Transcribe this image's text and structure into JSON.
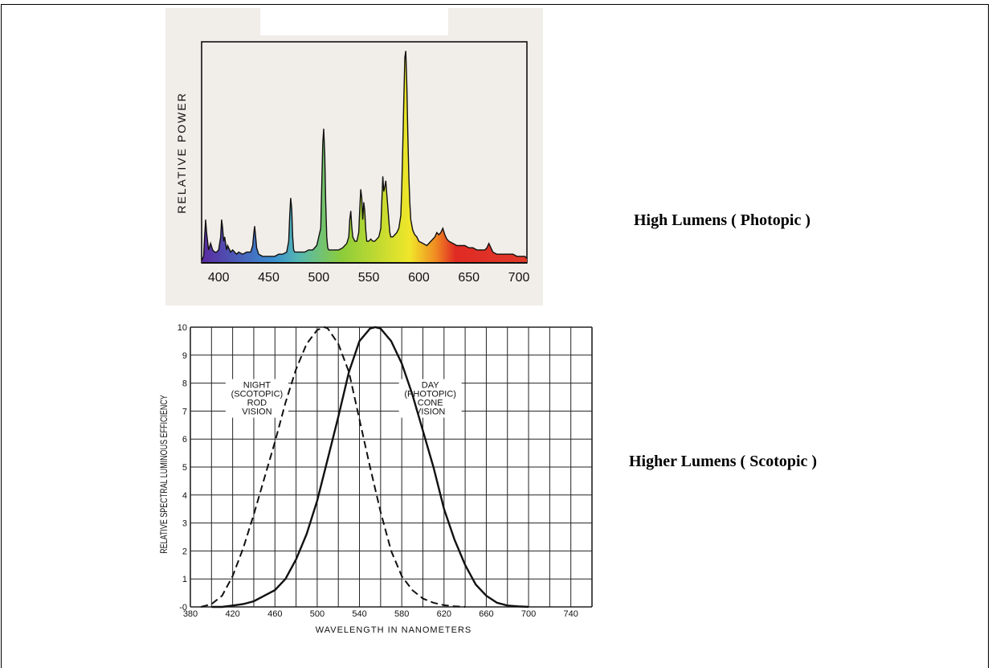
{
  "captions": {
    "photopic": "High Lumens ( Photopic )",
    "scotopic": "Higher Lumens ( Scotopic )"
  },
  "chart_data": [
    {
      "type": "area",
      "ylabel": "RELATIVE POWER",
      "x_ticks": [
        400,
        450,
        500,
        550,
        600,
        650,
        700
      ],
      "xlim": [
        383,
        708
      ],
      "ylim": [
        0,
        1
      ],
      "colors": {
        "violet": "#5b2aa0",
        "blue": "#3a8fd0",
        "cyan": "#55b8b0",
        "green": "#8ccc3a",
        "yellow": "#f0e62a",
        "orange": "#f08a22",
        "red": "#e02a24",
        "line": "#111111"
      },
      "series": [
        {
          "x": [
            383,
            385,
            386,
            387,
            388,
            390,
            392,
            394,
            396,
            398,
            400,
            402,
            403,
            404,
            405,
            406,
            407,
            408,
            409,
            410,
            412,
            414,
            416,
            418,
            420,
            424,
            428,
            432,
            434,
            435,
            436,
            437,
            438,
            440,
            444,
            448,
            452,
            456,
            460,
            464,
            468,
            470,
            471,
            472,
            473,
            474,
            475,
            476,
            478,
            482,
            486,
            490,
            494,
            498,
            502,
            503,
            504,
            505,
            506,
            507,
            508,
            509,
            510,
            512,
            516,
            520,
            524,
            528,
            530,
            531,
            532,
            533,
            534,
            536,
            538,
            540,
            541,
            542,
            543,
            544,
            545,
            546,
            547,
            548,
            550,
            552,
            554,
            556,
            560,
            562,
            563,
            564,
            565,
            566,
            567,
            568,
            569,
            570,
            571,
            572,
            574,
            576,
            578,
            580,
            582,
            583,
            584,
            585,
            586,
            587,
            588,
            589,
            590,
            591,
            592,
            594,
            596,
            598,
            600,
            604,
            608,
            612,
            616,
            618,
            620,
            622,
            624,
            626,
            628,
            630,
            634,
            638,
            642,
            646,
            650,
            654,
            658,
            662,
            666,
            668,
            670,
            672,
            674,
            678,
            682,
            686,
            690,
            694,
            698,
            702,
            706,
            708
          ],
          "y": [
            0.01,
            0.03,
            0.12,
            0.2,
            0.14,
            0.06,
            0.09,
            0.06,
            0.05,
            0.05,
            0.06,
            0.12,
            0.2,
            0.16,
            0.1,
            0.12,
            0.09,
            0.06,
            0.08,
            0.07,
            0.05,
            0.06,
            0.05,
            0.04,
            0.05,
            0.04,
            0.05,
            0.05,
            0.08,
            0.13,
            0.17,
            0.12,
            0.07,
            0.04,
            0.03,
            0.03,
            0.03,
            0.03,
            0.04,
            0.04,
            0.05,
            0.1,
            0.22,
            0.3,
            0.25,
            0.12,
            0.06,
            0.05,
            0.05,
            0.05,
            0.05,
            0.06,
            0.06,
            0.08,
            0.16,
            0.35,
            0.55,
            0.62,
            0.5,
            0.28,
            0.12,
            0.07,
            0.06,
            0.06,
            0.06,
            0.06,
            0.07,
            0.09,
            0.12,
            0.2,
            0.24,
            0.17,
            0.12,
            0.1,
            0.1,
            0.14,
            0.25,
            0.34,
            0.3,
            0.2,
            0.28,
            0.24,
            0.15,
            0.1,
            0.1,
            0.11,
            0.1,
            0.1,
            0.12,
            0.16,
            0.28,
            0.4,
            0.33,
            0.35,
            0.38,
            0.32,
            0.26,
            0.2,
            0.14,
            0.12,
            0.12,
            0.13,
            0.14,
            0.16,
            0.22,
            0.35,
            0.55,
            0.75,
            0.95,
            0.98,
            0.82,
            0.6,
            0.4,
            0.28,
            0.2,
            0.15,
            0.13,
            0.12,
            0.1,
            0.09,
            0.08,
            0.1,
            0.12,
            0.14,
            0.13,
            0.14,
            0.16,
            0.13,
            0.11,
            0.1,
            0.09,
            0.08,
            0.08,
            0.08,
            0.07,
            0.07,
            0.06,
            0.06,
            0.06,
            0.07,
            0.09,
            0.07,
            0.05,
            0.04,
            0.04,
            0.04,
            0.04,
            0.04,
            0.03,
            0.03,
            0.03,
            0.02
          ]
        }
      ]
    },
    {
      "type": "line",
      "xlabel": "WAVELENGTH IN NANOMETERS",
      "ylabel": "RELATIVE SPECTRAL LUMINOUS EFFICIENCY",
      "xlim": [
        380,
        760
      ],
      "ylim": [
        0,
        10
      ],
      "x_ticks": [
        380,
        420,
        460,
        500,
        540,
        580,
        620,
        660,
        700,
        740
      ],
      "y_ticks": [
        0,
        1,
        2,
        3,
        4,
        5,
        6,
        7,
        8,
        9,
        10
      ],
      "y_tick_labels": [
        "-0",
        "1",
        "2",
        "3",
        "4",
        "5",
        "6",
        "7",
        "8",
        "9",
        "10"
      ],
      "grid": true,
      "annotations": [
        {
          "lines": [
            "NIGHT",
            "(SCOTOPIC)",
            "ROD",
            "VISION"
          ],
          "x": 443,
          "y": 8.0
        },
        {
          "lines": [
            "DAY",
            "(PHOTOPIC)",
            "CONE",
            "VISION"
          ],
          "x": 607,
          "y": 8.0
        }
      ],
      "series": [
        {
          "style": "dashed",
          "x": [
            390,
            400,
            410,
            420,
            430,
            440,
            450,
            460,
            470,
            480,
            490,
            500,
            507,
            510,
            520,
            530,
            540,
            550,
            560,
            570,
            580,
            590,
            600,
            610,
            620,
            630,
            640
          ],
          "y": [
            0.0,
            0.1,
            0.4,
            1.1,
            2.1,
            3.3,
            4.6,
            5.9,
            7.3,
            8.5,
            9.4,
            9.9,
            10.0,
            9.95,
            9.4,
            8.4,
            6.7,
            5.0,
            3.4,
            2.0,
            1.1,
            0.6,
            0.3,
            0.15,
            0.06,
            0.02,
            0.0
          ]
        },
        {
          "style": "solid",
          "x": [
            400,
            410,
            420,
            430,
            440,
            450,
            460,
            470,
            480,
            490,
            500,
            510,
            520,
            530,
            540,
            550,
            555,
            560,
            570,
            580,
            590,
            600,
            610,
            620,
            630,
            640,
            650,
            660,
            670,
            680,
            690,
            700
          ],
          "y": [
            0.0,
            0.0,
            0.05,
            0.1,
            0.2,
            0.4,
            0.6,
            1.0,
            1.7,
            2.6,
            3.8,
            5.3,
            6.8,
            8.4,
            9.5,
            9.95,
            10.0,
            9.95,
            9.5,
            8.7,
            7.6,
            6.3,
            5.0,
            3.5,
            2.4,
            1.5,
            0.8,
            0.4,
            0.15,
            0.05,
            0.02,
            0.0
          ]
        }
      ]
    }
  ]
}
